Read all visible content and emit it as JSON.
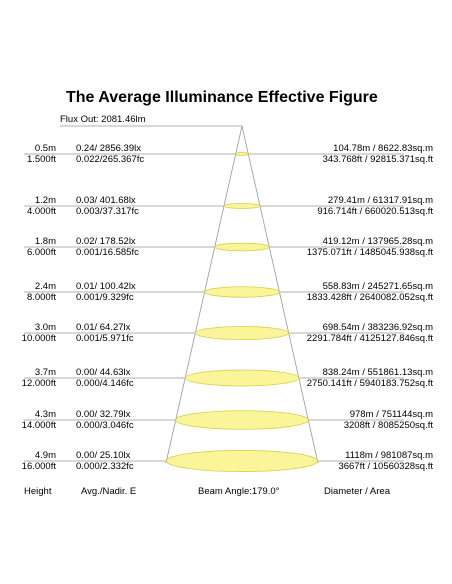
{
  "title": "The Average Illuminance Effective Figure",
  "flux_out": "Flux Out: 2081.46lm",
  "rows": [
    {
      "height_m": "0.5m",
      "height_ft": "1.500ft",
      "lux": "0.24/ 2856.39lx",
      "fc": "0.022/265.367fc",
      "diam_m": "104.78m / 8622.83sq.m",
      "diam_ft": "343.768ft / 92815.371sq.ft"
    },
    {
      "height_m": "1.2m",
      "height_ft": "4.000ft",
      "lux": "0.03/ 401.68lx",
      "fc": "0.003/37.317fc",
      "diam_m": "279.41m / 61317.91sq.m",
      "diam_ft": "916.714ft / 660020.513sq.ft"
    },
    {
      "height_m": "1.8m",
      "height_ft": "6.000ft",
      "lux": "0.02/ 178.52lx",
      "fc": "0.001/16.585fc",
      "diam_m": "419.12m / 137965.28sq.m",
      "diam_ft": "1375.071ft / 1485045.938sq.ft"
    },
    {
      "height_m": "2.4m",
      "height_ft": "8.000ft",
      "lux": "0.01/ 100.42lx",
      "fc": "0.001/9.329fc",
      "diam_m": "558.83m / 245271.65sq.m",
      "diam_ft": "1833.428ft / 2640082.052sq.ft"
    },
    {
      "height_m": "3.0m",
      "height_ft": "10.000ft",
      "lux": "0.01/ 64.27lx",
      "fc": "0.001/5.971fc",
      "diam_m": "698.54m / 383236.92sq.m",
      "diam_ft": "2291.784ft / 4125127.846sq.ft"
    },
    {
      "height_m": "3.7m",
      "height_ft": "12.000ft",
      "lux": "0.00/ 44.63lx",
      "fc": "0.000/4.146fc",
      "diam_m": "838.24m / 551861.13sq.m",
      "diam_ft": "2750.141ft / 5940183.752sq.ft"
    },
    {
      "height_m": "4.3m",
      "height_ft": "14.000ft",
      "lux": "0.00/ 32.79lx",
      "fc": "0.000/3.046fc",
      "diam_m": "978m / 751144sq.m",
      "diam_ft": "3208ft / 8085250sq.ft"
    },
    {
      "height_m": "4.9m",
      "height_ft": "16.000ft",
      "lux": "0.00/ 25.10lx",
      "fc": "0.000/2.332fc",
      "diam_m": "1118m / 981087sq.m",
      "diam_ft": "3667ft / 10560328sq.ft"
    }
  ],
  "footer": {
    "height": "Height",
    "avg": "Avg./Nadir. E",
    "beam": "Beam Angle:179.0°",
    "diameter": "Diameter / Area"
  },
  "colors": {
    "ellipse_fill": "#fbf59a",
    "ellipse_stroke": "#d8cf4a",
    "line": "#999999",
    "text": "#111111"
  }
}
